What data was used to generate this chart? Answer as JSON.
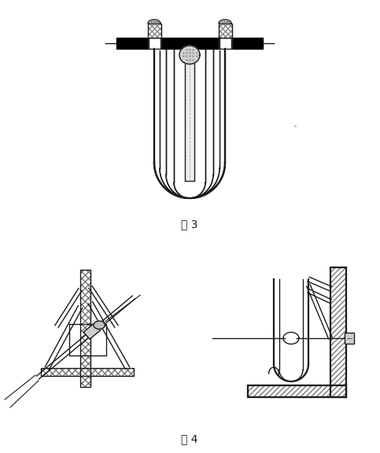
{
  "fig_width": 4.83,
  "fig_height": 5.76,
  "dpi": 100,
  "bg_color": "#ffffff",
  "line_color": "#1a1a1a",
  "fig3_label": "图 3",
  "fig4_label": "图 4"
}
